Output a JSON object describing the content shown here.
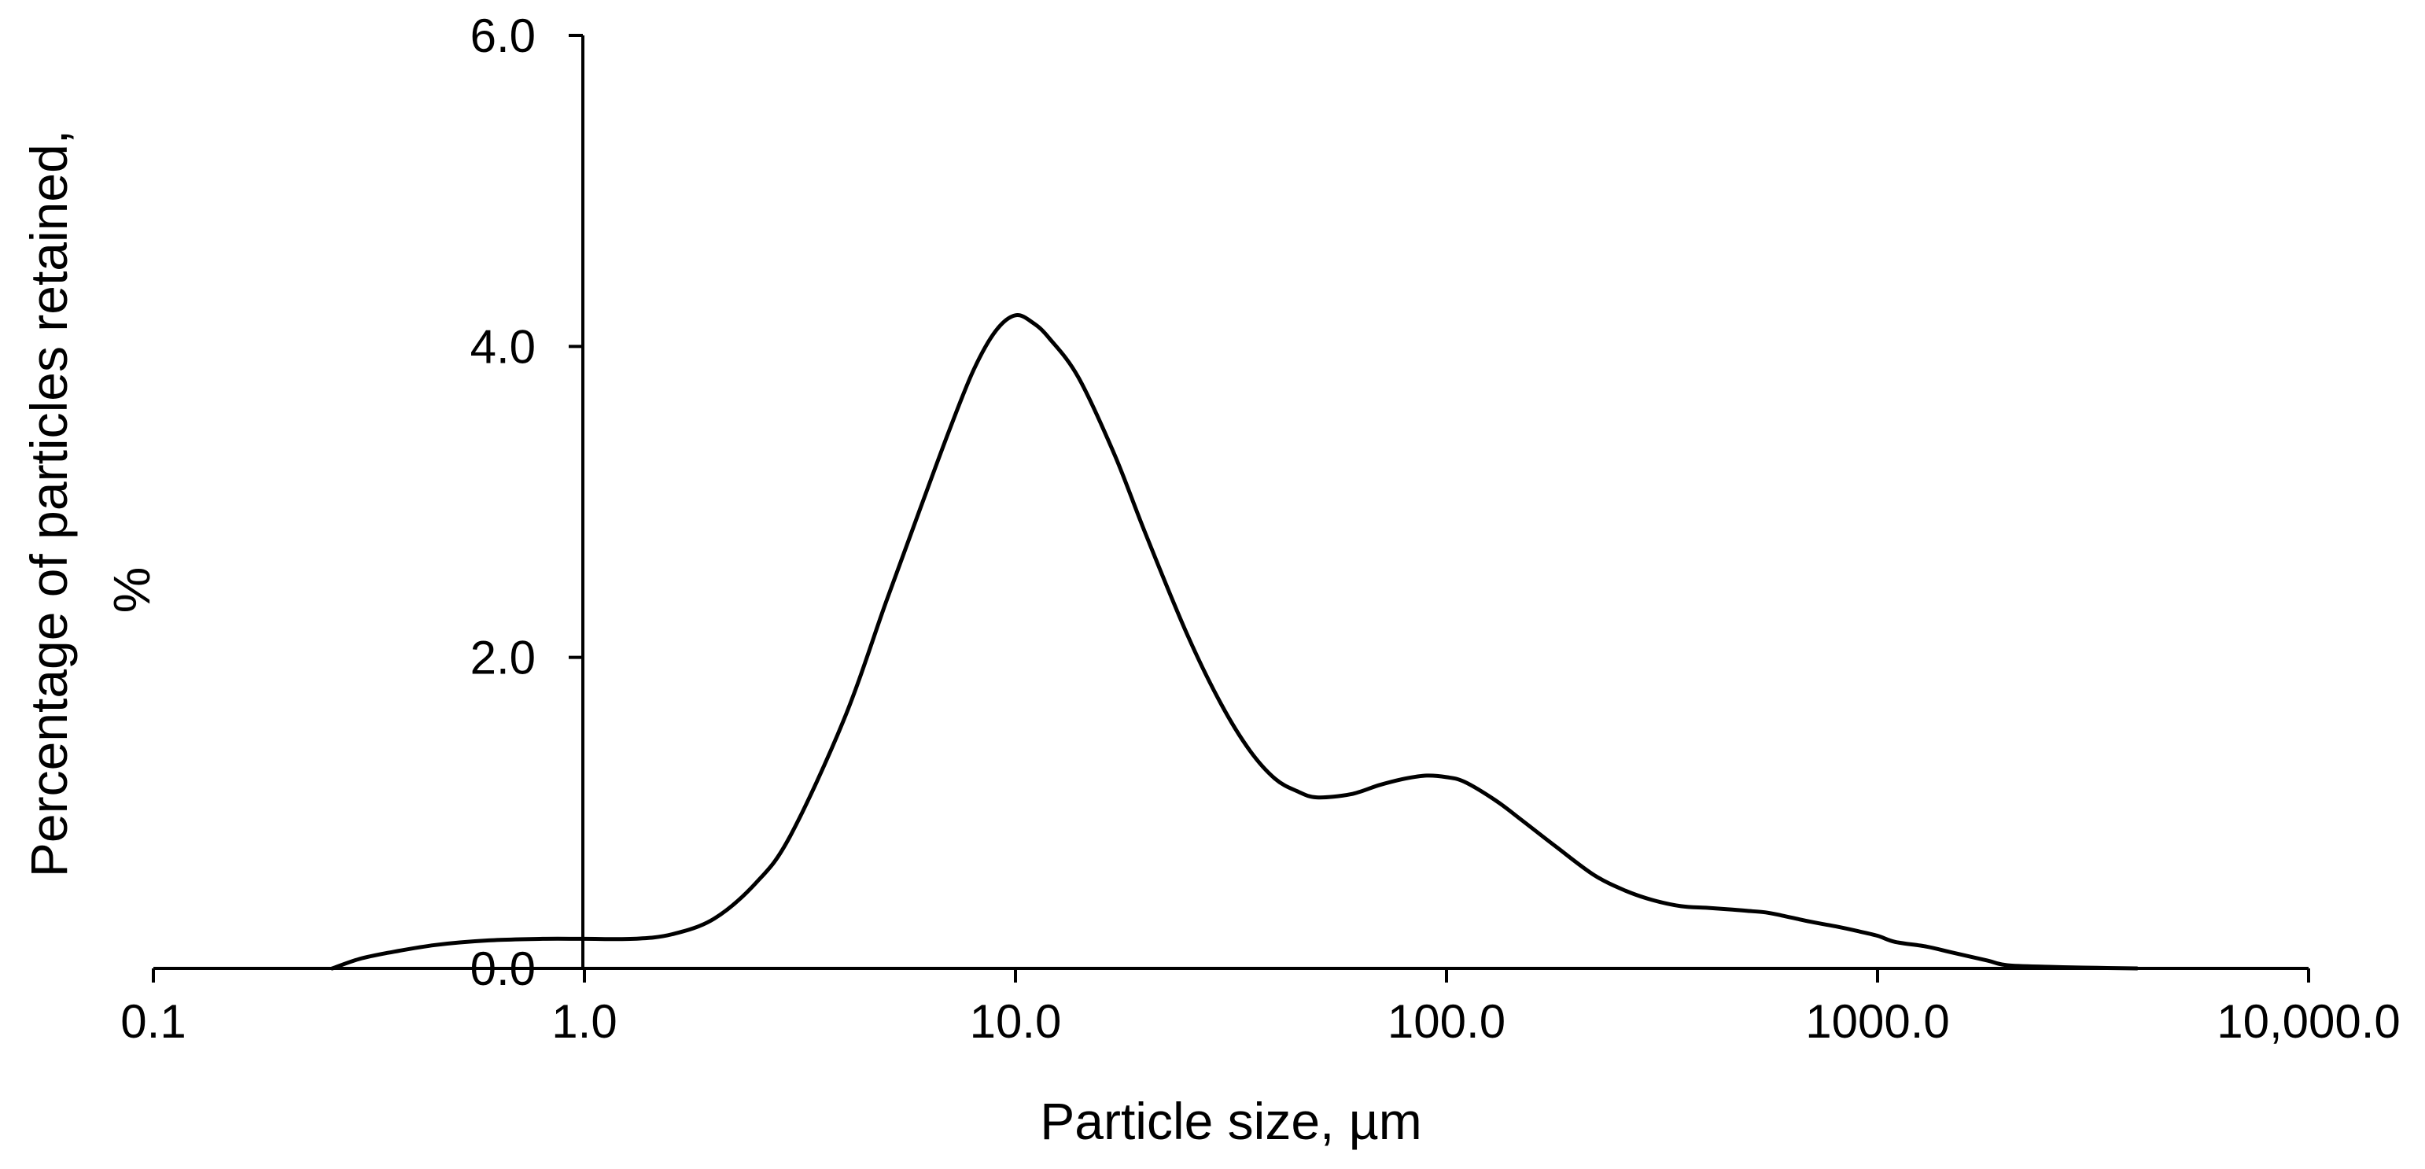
{
  "chart_data": {
    "type": "line",
    "title": "",
    "xlabel": "Particle size, µm",
    "ylabel": "Percentage of particles retained,",
    "ylabel_line2": "%",
    "x_scale": "log",
    "xlim": [
      0.1,
      10000
    ],
    "ylim": [
      0,
      6
    ],
    "x_ticks": [
      0.1,
      1,
      10,
      100,
      1000,
      10000
    ],
    "x_tick_labels": [
      "0.1",
      "1.0",
      "10.0",
      "100.0",
      "1000.0",
      "10,000.0"
    ],
    "y_ticks": [
      0,
      2,
      4,
      6
    ],
    "y_tick_labels": [
      "0.0",
      "2.0",
      "4.0",
      "6.0"
    ],
    "grid": false,
    "legend": "none",
    "series": [
      {
        "color": "#000000",
        "x": [
          0.26,
          0.3,
          0.35,
          0.45,
          0.6,
          0.8,
          1.0,
          1.3,
          1.6,
          2.0,
          2.5,
          3.0,
          4.0,
          5.0,
          6.0,
          7.0,
          8.0,
          9.0,
          10.0,
          11.0,
          12.0,
          14.0,
          17.0,
          20.0,
          25.0,
          30.0,
          35.0,
          40.0,
          45.0,
          50.0,
          60.0,
          70.0,
          80.0,
          90.0,
          100.0,
          110.0,
          130.0,
          150.0,
          180.0,
          220.0,
          260.0,
          300.0,
          350.0,
          400.0,
          450.0,
          500.0,
          550.0,
          600.0,
          700.0,
          800.0,
          900.0,
          1000.0,
          1100.0,
          1300.0,
          1500.0,
          1800.0,
          2000.0,
          2500.0,
          3000.0,
          4000.0
        ],
        "y": [
          0.0,
          0.06,
          0.1,
          0.15,
          0.18,
          0.19,
          0.19,
          0.19,
          0.22,
          0.32,
          0.55,
          0.85,
          1.6,
          2.35,
          2.95,
          3.45,
          3.85,
          4.1,
          4.2,
          4.15,
          4.05,
          3.8,
          3.3,
          2.8,
          2.15,
          1.7,
          1.4,
          1.22,
          1.14,
          1.1,
          1.12,
          1.18,
          1.22,
          1.24,
          1.23,
          1.2,
          1.08,
          0.95,
          0.78,
          0.6,
          0.5,
          0.44,
          0.4,
          0.39,
          0.38,
          0.37,
          0.36,
          0.34,
          0.3,
          0.27,
          0.24,
          0.21,
          0.17,
          0.14,
          0.1,
          0.05,
          0.02,
          0.01,
          0.005,
          0.0
        ]
      }
    ]
  }
}
